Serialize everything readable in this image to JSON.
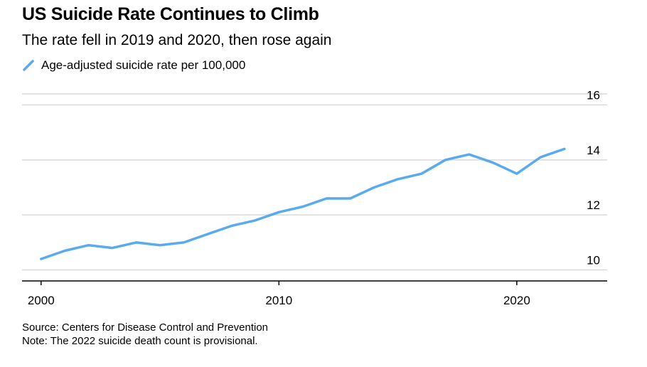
{
  "chart_data": {
    "type": "line",
    "title": "US Suicide Rate Continues to Climb",
    "subtitle": "The rate fell in 2019 and 2020, then rose again",
    "xlabel": "",
    "ylabel": "",
    "x": [
      2000,
      2001,
      2002,
      2003,
      2004,
      2005,
      2006,
      2007,
      2008,
      2009,
      2010,
      2011,
      2012,
      2013,
      2014,
      2015,
      2016,
      2017,
      2018,
      2019,
      2020,
      2021,
      2022
    ],
    "series": [
      {
        "name": "Age-adjusted suicide rate per 100,000",
        "color": "#5aaaf0",
        "values": [
          10.4,
          10.7,
          10.9,
          10.8,
          11.0,
          10.9,
          11.0,
          11.3,
          11.6,
          11.8,
          12.1,
          12.3,
          12.6,
          12.6,
          13.0,
          13.3,
          13.5,
          14.0,
          14.2,
          13.9,
          13.5,
          14.1,
          14.4
        ]
      }
    ],
    "xlim": [
      1999.2,
      2023.8
    ],
    "ylim": [
      9.6,
      16.4
    ],
    "xticks": [
      {
        "value": 2000,
        "label": "2000"
      },
      {
        "value": 2010,
        "label": "2010"
      },
      {
        "value": 2020,
        "label": "2020"
      }
    ],
    "yticks": [
      {
        "value": 10,
        "label": "10"
      },
      {
        "value": 12,
        "label": "12"
      },
      {
        "value": 14,
        "label": "14"
      },
      {
        "value": 16,
        "label": "16"
      }
    ],
    "grid": true,
    "y_axis_side": "right",
    "legend_position": "top-left"
  },
  "footer": {
    "source": "Source: Centers for Disease Control and Prevention",
    "note": "Note: The 2022 suicide death count is provisional."
  }
}
